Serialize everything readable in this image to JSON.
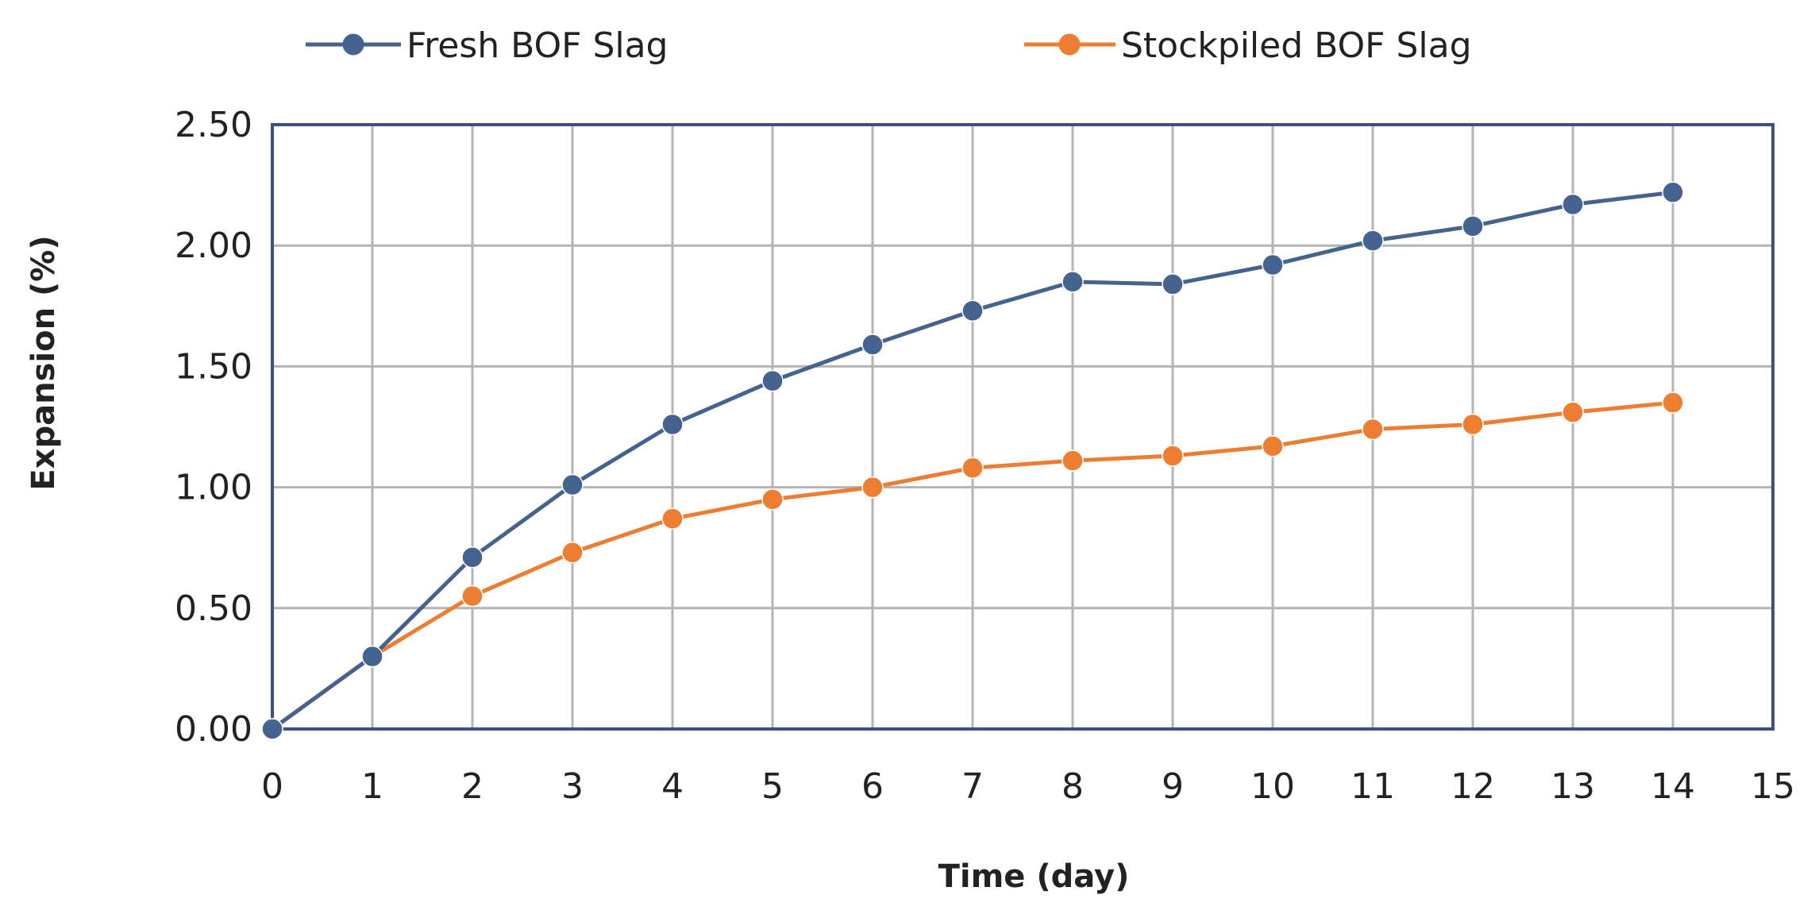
{
  "chart_data": {
    "type": "line",
    "title": "",
    "xlabel": "Time (day)",
    "ylabel": "Expansion (%)",
    "xlim": [
      0,
      15
    ],
    "ylim": [
      0,
      2.5
    ],
    "x_ticks": [
      0,
      1,
      2,
      3,
      4,
      5,
      6,
      7,
      8,
      9,
      10,
      11,
      12,
      13,
      14,
      15
    ],
    "y_ticks": [
      0,
      0.5,
      1,
      1.5,
      2,
      2.5
    ],
    "x_tick_labels": [
      "0",
      "1",
      "2",
      "3",
      "4",
      "5",
      "6",
      "7",
      "8",
      "9",
      "10",
      "11",
      "12",
      "13",
      "14",
      "15"
    ],
    "y_tick_labels": [
      "0.00",
      "0.50",
      "1.00",
      "1.50",
      "2.00",
      "2.50"
    ],
    "grid": true,
    "legend_position": "top",
    "x": [
      0,
      1,
      2,
      3,
      4,
      5,
      6,
      7,
      8,
      9,
      10,
      11,
      12,
      13,
      14
    ],
    "series": [
      {
        "name": "Fresh BOF Slag",
        "color": "#44638f",
        "values": [
          0.0,
          0.3,
          0.71,
          1.01,
          1.26,
          1.44,
          1.59,
          1.73,
          1.85,
          1.84,
          1.92,
          2.02,
          2.08,
          2.17,
          2.22
        ]
      },
      {
        "name": "Stockpiled BOF Slag",
        "color": "#ed7d31",
        "values": [
          0.0,
          0.3,
          0.55,
          0.73,
          0.87,
          0.95,
          1.0,
          1.08,
          1.11,
          1.13,
          1.17,
          1.24,
          1.26,
          1.31,
          1.35
        ]
      }
    ],
    "frame_color": "#3c4f8c",
    "grid_color": "#b4b4b4"
  }
}
